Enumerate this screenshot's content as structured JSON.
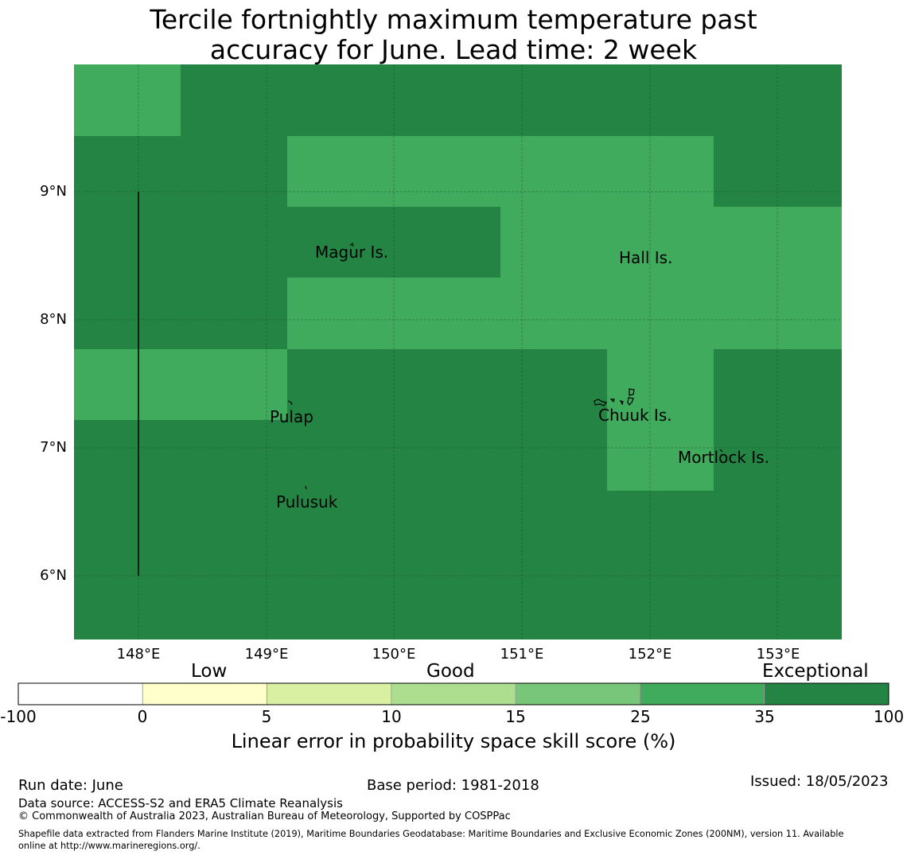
{
  "title_line1": "Tercile fortnightly maximum temperature past",
  "title_line2": "accuracy for June. Lead time: 2 week",
  "map": {
    "lon_range": [
      147.5,
      153.5
    ],
    "lat_range": [
      5.5,
      10.0
    ],
    "x_ticks": [
      "148°E",
      "149°E",
      "150°E",
      "151°E",
      "152°E",
      "153°E"
    ],
    "y_ticks": [
      "9°N",
      "8°N",
      "7°N",
      "6°N"
    ],
    "places": {
      "magur": "Magur Is.",
      "hall": "Hall Is.",
      "pulap": "Pulap",
      "chuuk": "Chuuk Is.",
      "mortlock": "Mortlock Is.",
      "pulusuk": "Pulusuk"
    },
    "colors": {
      "dark": "#238443",
      "light": "#41ab5d"
    }
  },
  "colorbar": {
    "categories": [
      "Low",
      "Good",
      "Exceptional"
    ],
    "tick_labels": [
      "-100",
      "0",
      "5",
      "10",
      "15",
      "25",
      "35",
      "100"
    ],
    "colors": [
      "#ffffff",
      "#ffffcc",
      "#d9f0a3",
      "#addd8e",
      "#78c679",
      "#41ab5d",
      "#238443"
    ],
    "label": "Linear error in probability space skill score (%)"
  },
  "footer": {
    "run_date": "Run date: June",
    "base_period": "Base period: 1981-2018",
    "issued": "Issued: 18/05/2023",
    "data_source": "Data source: ACCESS-S2 and ERA5 Climate Reanalysis",
    "copyright": "© Commonwealth of Australia 2023, Australian Bureau of Meteorology, Supported by COSPPac",
    "shapefile_line1": "Shapefile data extracted from Flanders Marine Institute (2019), Maritime Boundaries Geodatabase: Maritime Boundaries and Exclusive Economic Zones (200NM), version 11. Available",
    "shapefile_line2": "online at http://www.marineregions.org/."
  }
}
